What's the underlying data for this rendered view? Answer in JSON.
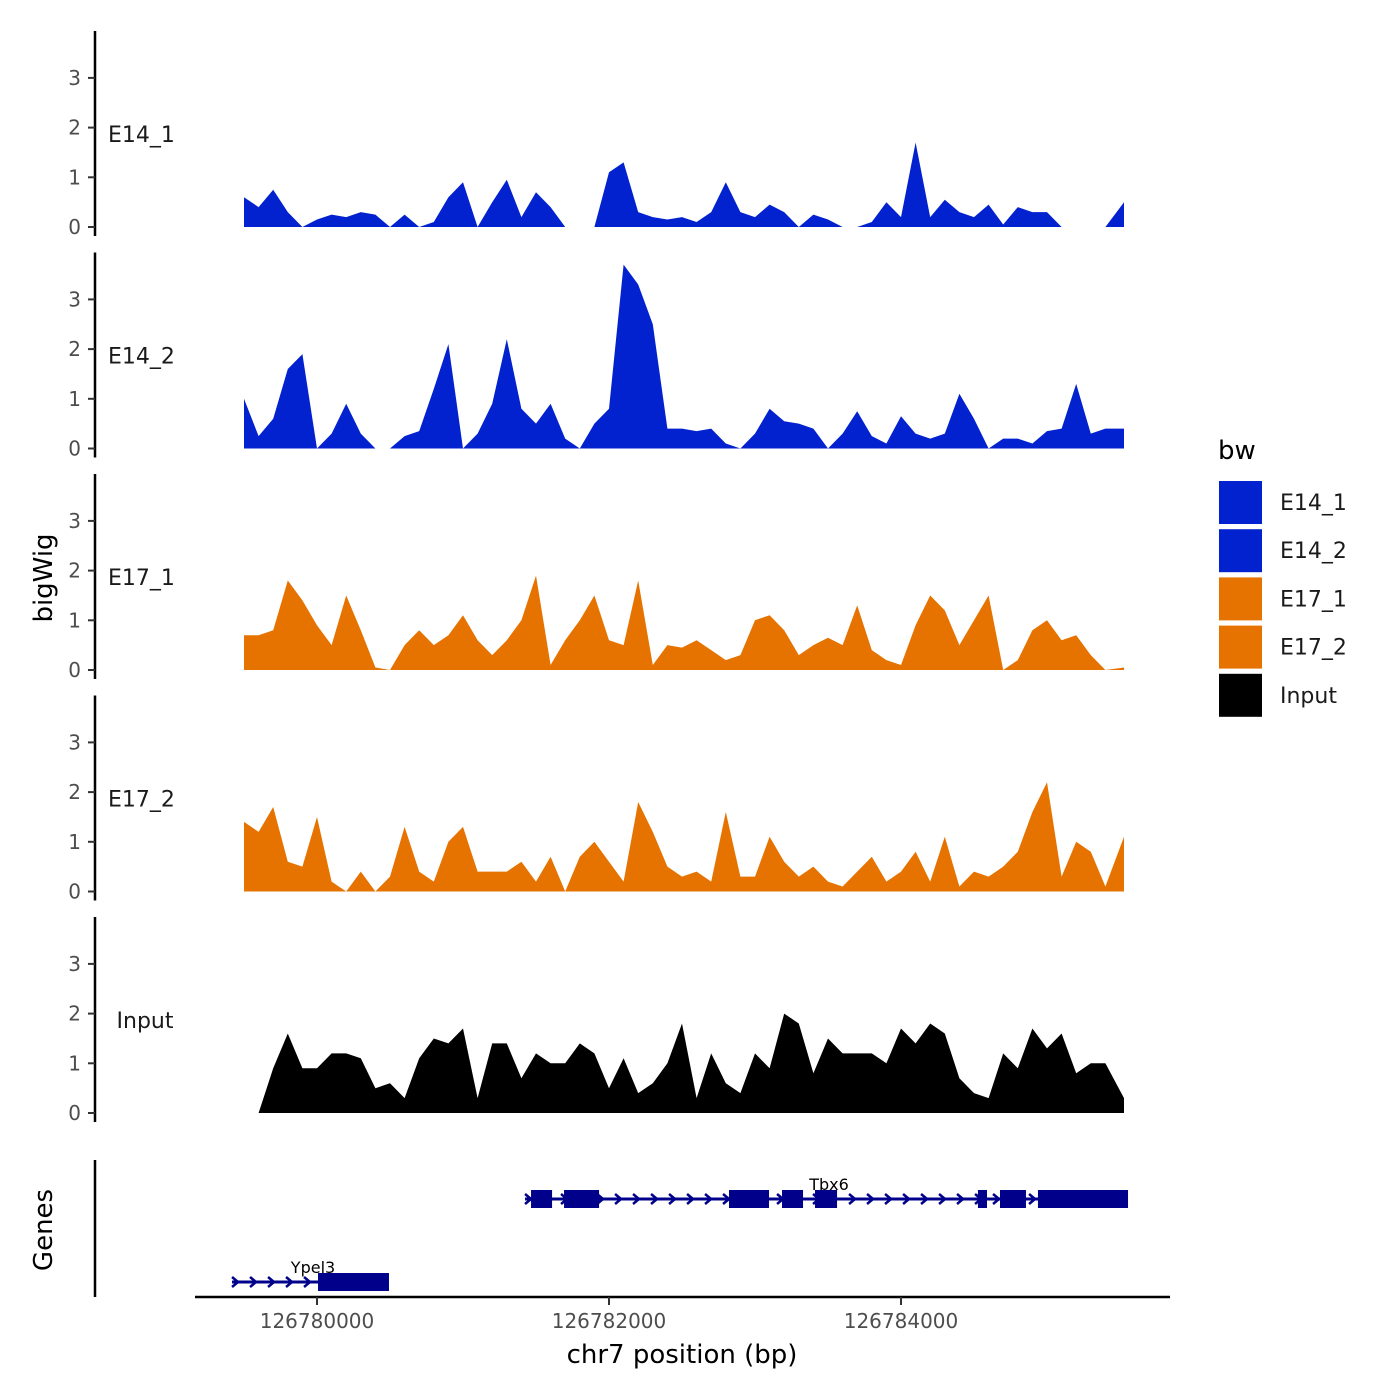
{
  "chart_data": {
    "type": "area",
    "xlabel": "chr7 position (bp)",
    "ylabel": "bigWig",
    "genes_label": "Genes",
    "x_range": [
      126779150,
      126785850
    ],
    "x_ticks": [
      126780000,
      126782000,
      126784000
    ],
    "x_tick_labels": [
      "126780000",
      "126782000",
      "126784000"
    ],
    "ylim": [
      0,
      3.9
    ],
    "y_ticks": [
      0,
      1,
      2,
      3
    ],
    "y_tick_labels": [
      "0",
      "1",
      "2",
      "3"
    ],
    "sample_start": 126779500,
    "sample_step": 100,
    "tracks": [
      {
        "name": "E14_1",
        "color": "#0322CF",
        "values": [
          0.6,
          0.4,
          0.75,
          0.3,
          0,
          0.15,
          0.25,
          0.2,
          0.3,
          0.25,
          0,
          0.25,
          0,
          0.1,
          0.6,
          0.9,
          0,
          0.5,
          0.95,
          0.2,
          0.7,
          0.4,
          0,
          0,
          0,
          1.1,
          1.3,
          0.3,
          0.2,
          0.15,
          0.2,
          0.1,
          0.3,
          0.9,
          0.3,
          0.2,
          0.45,
          0.3,
          0,
          0.25,
          0.15,
          0,
          0,
          0.1,
          0.5,
          0.2,
          1.7,
          0.2,
          0.55,
          0.3,
          0.2,
          0.45,
          0.05,
          0.4,
          0.3,
          0.3,
          0,
          0,
          0,
          0,
          0.5
        ]
      },
      {
        "name": "E14_2",
        "color": "#0322CF",
        "values": [
          1.0,
          0.25,
          0.6,
          1.6,
          1.9,
          0,
          0.3,
          0.9,
          0.3,
          0,
          0,
          0.25,
          0.35,
          1.2,
          2.1,
          0,
          0.3,
          0.9,
          2.2,
          0.8,
          0.5,
          0.9,
          0.2,
          0,
          0.5,
          0.8,
          3.7,
          3.3,
          2.5,
          0.4,
          0.4,
          0.35,
          0.4,
          0.1,
          0,
          0.3,
          0.8,
          0.55,
          0.5,
          0.4,
          0,
          0.3,
          0.75,
          0.25,
          0.1,
          0.65,
          0.3,
          0.2,
          0.3,
          1.1,
          0.6,
          0,
          0.2,
          0.2,
          0.1,
          0.35,
          0.4,
          1.3,
          0.3,
          0.4,
          0.4
        ]
      },
      {
        "name": "E17_1",
        "color": "#E67300",
        "values": [
          0.7,
          0.7,
          0.8,
          1.8,
          1.4,
          0.9,
          0.5,
          1.5,
          0.8,
          0.05,
          0,
          0.5,
          0.8,
          0.5,
          0.7,
          1.1,
          0.6,
          0.3,
          0.6,
          1.0,
          1.9,
          0.1,
          0.6,
          1.0,
          1.5,
          0.6,
          0.5,
          1.8,
          0.1,
          0.5,
          0.45,
          0.6,
          0.4,
          0.2,
          0.3,
          1.0,
          1.1,
          0.8,
          0.3,
          0.5,
          0.65,
          0.5,
          1.3,
          0.4,
          0.2,
          0.1,
          0.9,
          1.5,
          1.2,
          0.5,
          1.0,
          1.5,
          0,
          0.2,
          0.8,
          1.0,
          0.6,
          0.7,
          0.3,
          0,
          0.05
        ]
      },
      {
        "name": "E17_2",
        "color": "#E67300",
        "values": [
          1.4,
          1.2,
          1.7,
          0.6,
          0.5,
          1.5,
          0.2,
          0,
          0.4,
          0,
          0.3,
          1.3,
          0.4,
          0.2,
          1.0,
          1.3,
          0.4,
          0.4,
          0.4,
          0.6,
          0.2,
          0.7,
          0,
          0.7,
          1.0,
          0.6,
          0.2,
          1.8,
          1.2,
          0.5,
          0.3,
          0.4,
          0.2,
          1.6,
          0.3,
          0.3,
          1.1,
          0.6,
          0.3,
          0.5,
          0.2,
          0.1,
          0.4,
          0.7,
          0.2,
          0.4,
          0.8,
          0.2,
          1.1,
          0.1,
          0.4,
          0.3,
          0.5,
          0.8,
          1.6,
          2.2,
          0.3,
          1.0,
          0.8,
          0.1,
          1.1
        ]
      },
      {
        "name": "Input",
        "color": "#000000",
        "values": [
          0,
          0,
          0.9,
          1.6,
          0.9,
          0.9,
          1.2,
          1.2,
          1.1,
          0.5,
          0.6,
          0.3,
          1.1,
          1.5,
          1.4,
          1.7,
          0.3,
          1.4,
          1.4,
          0.7,
          1.2,
          1.0,
          1.0,
          1.4,
          1.2,
          0.5,
          1.1,
          0.4,
          0.6,
          1.0,
          1.8,
          0.3,
          1.2,
          0.6,
          0.4,
          1.2,
          0.9,
          2.0,
          1.8,
          0.8,
          1.5,
          1.2,
          1.2,
          1.2,
          1.0,
          1.7,
          1.4,
          1.8,
          1.6,
          0.7,
          0.4,
          0.3,
          1.2,
          0.9,
          1.7,
          1.3,
          1.6,
          0.8,
          1.0,
          1.0,
          0.3
        ]
      }
    ],
    "legend": {
      "title": "bw",
      "position": "right",
      "entries": [
        "E14_1",
        "E14_2",
        "E17_1",
        "E17_2",
        "Input"
      ]
    },
    "genes": [
      {
        "name": "Tbx6",
        "color": "#00008B",
        "strand": "+",
        "start": 126781425,
        "end": 126785548,
        "exons": [
          [
            126781466,
            126781610
          ],
          [
            126781692,
            126781932
          ],
          [
            126782822,
            126783096
          ],
          [
            126783185,
            126783329
          ],
          [
            126783411,
            126783562
          ],
          [
            126784527,
            126784589
          ],
          [
            126784678,
            126784856
          ],
          [
            126784938,
            126785555
          ]
        ]
      },
      {
        "name": "Ypel3",
        "color": "#00008B",
        "strand": "+",
        "start": 126779418,
        "end": 126780493,
        "exons": [
          [
            126780007,
            126780493
          ]
        ]
      }
    ]
  }
}
